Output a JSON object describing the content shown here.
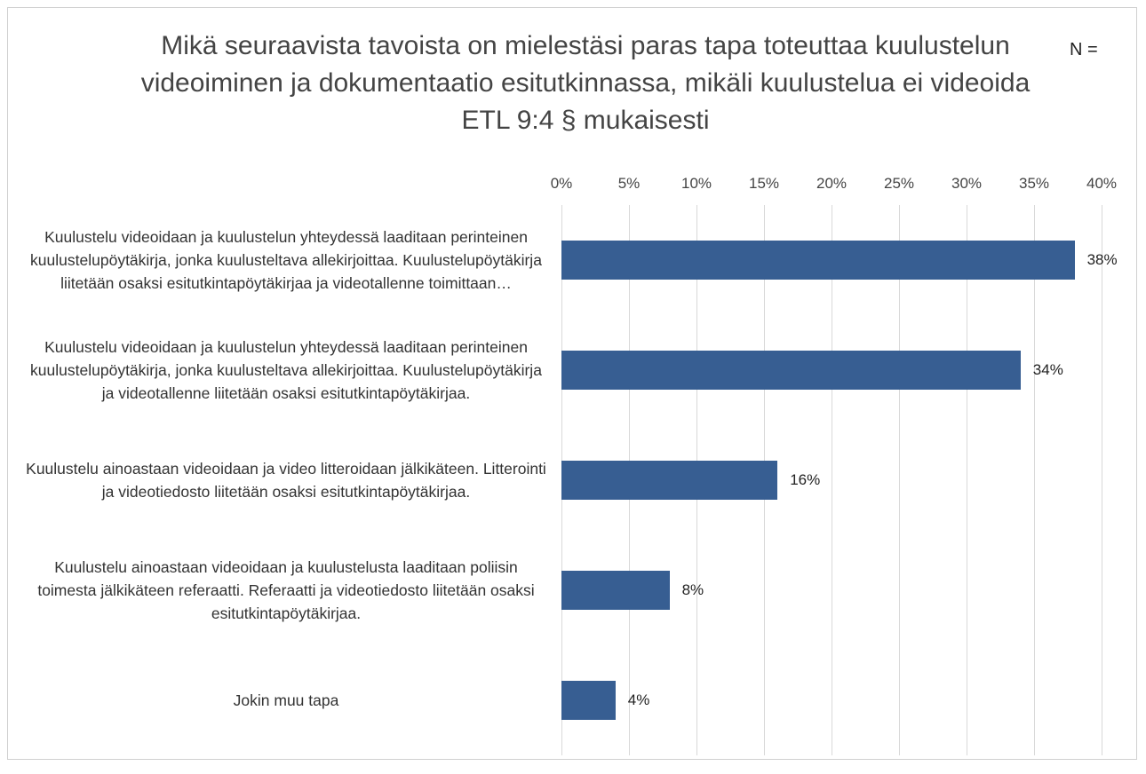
{
  "chart_data": {
    "type": "bar",
    "orientation": "horizontal",
    "title": "Mikä seuraavista tavoista on mielestäsi paras tapa toteuttaa kuulustelun videoiminen ja dokumentaatio esitutkinnassa, mikäli kuulustelua ei videoida ETL 9:4 § mukaisesti",
    "annotation": "N =",
    "categories": [
      "Kuulustelu videoidaan ja kuulustelun yhteydessä laaditaan perinteinen kuulustelupöytäkirja, jonka kuulusteltava allekirjoittaa. Kuulustelupöytäkirja liitetään osaksi esitutkintapöytäkirjaa ja videotallenne toimittaan…",
      "Kuulustelu videoidaan ja kuulustelun yhteydessä laaditaan perinteinen kuulustelupöytäkirja, jonka kuulusteltava allekirjoittaa. Kuulustelupöytäkirja ja videotallenne liitetään osaksi esitutkintapöytäkirjaa.",
      "Kuulustelu ainoastaan videoidaan ja video litteroidaan jälkikäteen. Litterointi ja videotiedosto liitetään osaksi esitutkintapöytäkirjaa.",
      "Kuulustelu ainoastaan videoidaan ja kuulustelusta laaditaan poliisin toimesta jälkikäteen referaatti. Referaatti ja videotiedosto liitetään osaksi esitutkintapöytäkirjaa.",
      "Jokin muu tapa"
    ],
    "values": [
      38,
      34,
      16,
      8,
      4
    ],
    "value_labels": [
      "38%",
      "34%",
      "16%",
      "8%",
      "4%"
    ],
    "color": "#375e92",
    "xlim": [
      0,
      40
    ],
    "xticks": [
      {
        "value": 0,
        "label": "0%"
      },
      {
        "value": 5,
        "label": "5%"
      },
      {
        "value": 10,
        "label": "10%"
      },
      {
        "value": 15,
        "label": "15%"
      },
      {
        "value": 20,
        "label": "20%"
      },
      {
        "value": 25,
        "label": "25%"
      },
      {
        "value": 30,
        "label": "30%"
      },
      {
        "value": 35,
        "label": "35%"
      },
      {
        "value": 40,
        "label": "40%"
      }
    ],
    "grid": true
  }
}
